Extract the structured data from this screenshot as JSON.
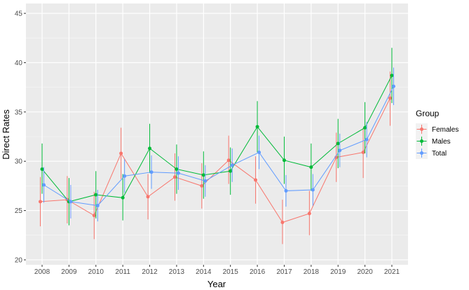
{
  "chart_data": {
    "type": "line",
    "xlabel": "Year",
    "ylabel": "Direct Rates",
    "x": [
      2008,
      2009,
      2010,
      2011,
      2012,
      2013,
      2014,
      2015,
      2016,
      2017,
      2018,
      2019,
      2020,
      2021
    ],
    "ylim": [
      19.5,
      46.0
    ],
    "yticks": [
      20,
      25,
      30,
      35,
      40,
      45
    ],
    "grid": true,
    "legend_title": "Group",
    "legend_position": "right",
    "series": [
      {
        "name": "Females",
        "color": "#F8766D",
        "values": [
          25.9,
          26.1,
          24.5,
          30.8,
          26.4,
          28.4,
          27.5,
          30.1,
          28.1,
          23.8,
          24.7,
          30.4,
          30.9,
          36.4
        ],
        "lower": [
          23.4,
          23.7,
          22.1,
          28.2,
          24.1,
          26.0,
          25.2,
          27.7,
          25.7,
          21.6,
          22.5,
          27.9,
          28.3,
          33.6
        ],
        "upper": [
          28.4,
          28.5,
          26.9,
          33.4,
          28.7,
          30.8,
          29.8,
          32.6,
          30.5,
          26.1,
          27.0,
          32.9,
          33.4,
          39.1
        ]
      },
      {
        "name": "Males",
        "color": "#00BA38",
        "values": [
          29.2,
          25.9,
          26.6,
          26.3,
          31.3,
          29.2,
          28.6,
          29.0,
          33.5,
          30.1,
          29.4,
          31.8,
          33.4,
          38.7
        ],
        "lower": [
          26.7,
          23.5,
          24.2,
          24.0,
          28.8,
          26.7,
          26.2,
          26.6,
          30.9,
          27.7,
          27.0,
          29.3,
          30.8,
          35.9
        ],
        "upper": [
          31.8,
          28.3,
          29.0,
          28.7,
          33.8,
          31.7,
          31.0,
          31.4,
          36.1,
          32.5,
          31.8,
          34.3,
          36.0,
          41.5
        ]
      },
      {
        "name": "Total",
        "color": "#619CFF",
        "values": [
          27.6,
          25.9,
          25.5,
          28.5,
          28.9,
          28.8,
          28.0,
          29.6,
          30.9,
          27.0,
          27.1,
          31.1,
          32.2,
          37.6
        ],
        "lower": [
          25.8,
          24.2,
          23.9,
          26.8,
          27.2,
          27.1,
          26.4,
          27.9,
          29.2,
          25.4,
          25.5,
          29.4,
          30.4,
          35.7
        ],
        "upper": [
          29.4,
          27.6,
          27.1,
          30.2,
          30.6,
          30.5,
          29.6,
          31.3,
          32.6,
          28.6,
          28.7,
          32.8,
          34.0,
          39.5
        ]
      }
    ]
  }
}
